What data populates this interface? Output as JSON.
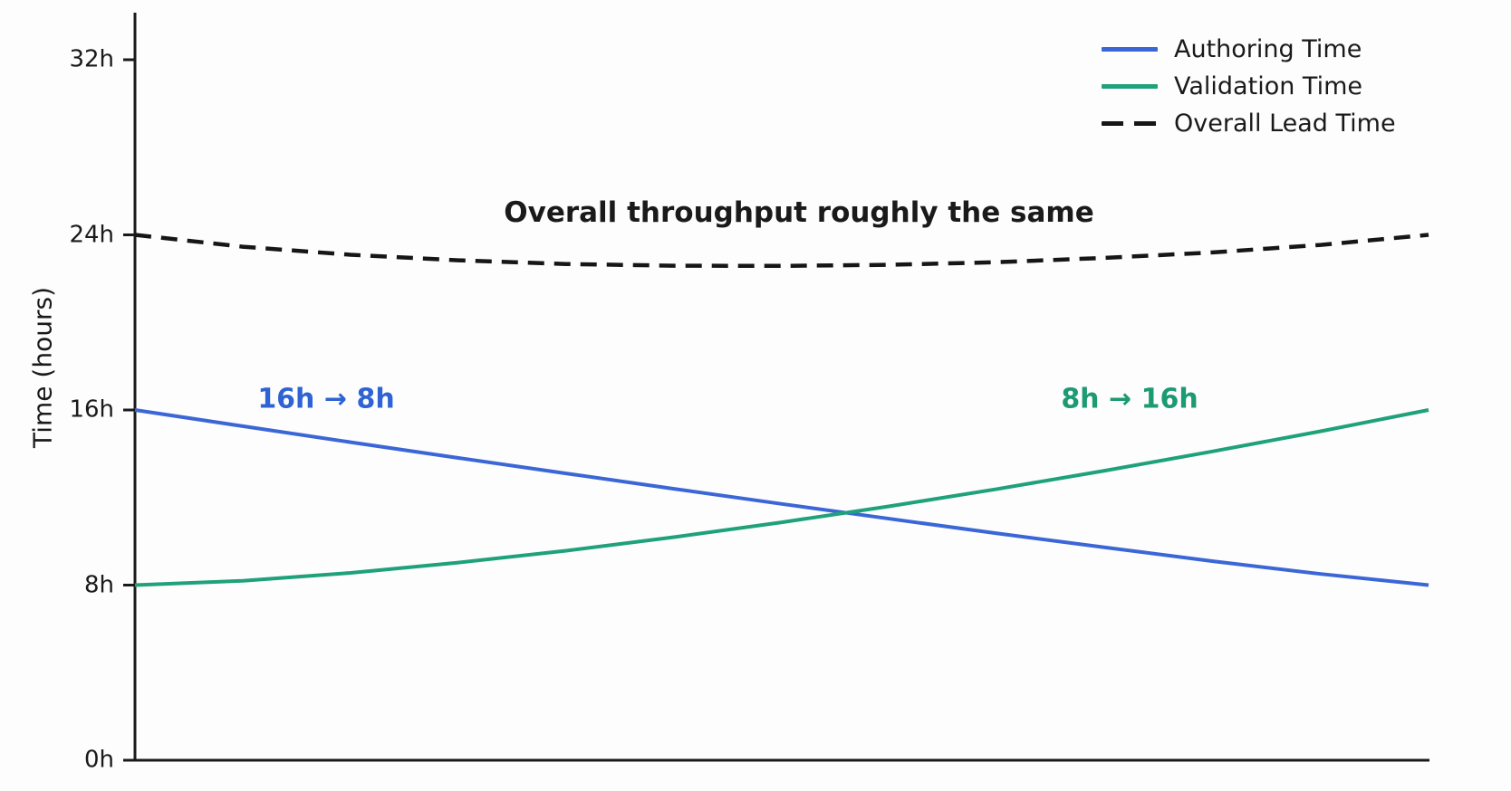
{
  "figure": {
    "background": "#fdfdfe",
    "text_color": "#1a1a1a"
  },
  "chart_data": {
    "type": "line",
    "title": "",
    "xlabel": "",
    "ylabel": "Time (hours)",
    "ylim": [
      0,
      32
    ],
    "grid": false,
    "legend_position": "top-right",
    "x_axis": {
      "tick_labels_visible": false
    },
    "y_ticks": [
      {
        "label": "0h",
        "value": 0
      },
      {
        "label": "8h",
        "value": 8
      },
      {
        "label": "16h",
        "value": 16
      },
      {
        "label": "24h",
        "value": 24
      },
      {
        "label": "32h",
        "value": 32
      }
    ],
    "series": [
      {
        "id": "authoring-time",
        "name": "Authoring Time",
        "color": "#3b67d6",
        "dash": false,
        "values": [
          16,
          15.26,
          14.53,
          13.81,
          13.1,
          12.4,
          11.71,
          11.03,
          10.36,
          9.72,
          9.09,
          8.51,
          8
        ]
      },
      {
        "id": "validation-time",
        "name": "Validation Time",
        "color": "#1fa179",
        "dash": false,
        "values": [
          8,
          8.2,
          8.56,
          9.03,
          9.57,
          10.19,
          10.87,
          11.6,
          12.39,
          13.23,
          14.11,
          15.03,
          16
        ]
      },
      {
        "id": "overall-lead-time",
        "name": "Overall Lead Time",
        "color": "#161616",
        "dash": true,
        "values": [
          24,
          23.46,
          23.09,
          22.84,
          22.67,
          22.59,
          22.58,
          22.63,
          22.75,
          22.95,
          23.2,
          23.54,
          24
        ]
      }
    ],
    "annotations": [
      {
        "id": "authoring-shift",
        "text": "16h → 8h",
        "color": "#2f63d4"
      },
      {
        "id": "validation-shift",
        "text": "8h → 16h",
        "color": "#1c9a72"
      },
      {
        "id": "throughput-note",
        "text": "Overall throughput roughly the same",
        "color": "#1a1a1a"
      }
    ]
  }
}
